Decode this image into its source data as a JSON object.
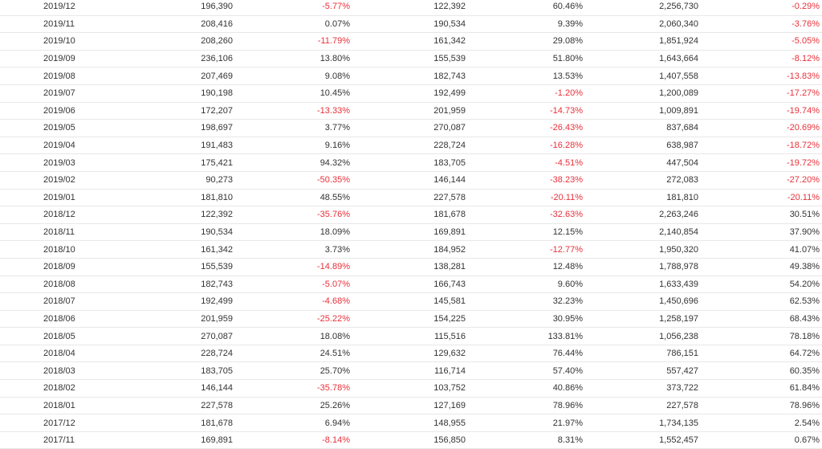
{
  "colors": {
    "negative": "#e8313a",
    "text": "#333333",
    "row_border": "#e8e8e8"
  },
  "table": {
    "rows": [
      [
        "2019/12",
        "196,390",
        "-5.77%",
        "122,392",
        "60.46%",
        "2,256,730",
        "-0.29%"
      ],
      [
        "2019/11",
        "208,416",
        "0.07%",
        "190,534",
        "9.39%",
        "2,060,340",
        "-3.76%"
      ],
      [
        "2019/10",
        "208,260",
        "-11.79%",
        "161,342",
        "29.08%",
        "1,851,924",
        "-5.05%"
      ],
      [
        "2019/09",
        "236,106",
        "13.80%",
        "155,539",
        "51.80%",
        "1,643,664",
        "-8.12%"
      ],
      [
        "2019/08",
        "207,469",
        "9.08%",
        "182,743",
        "13.53%",
        "1,407,558",
        "-13.83%"
      ],
      [
        "2019/07",
        "190,198",
        "10.45%",
        "192,499",
        "-1.20%",
        "1,200,089",
        "-17.27%"
      ],
      [
        "2019/06",
        "172,207",
        "-13.33%",
        "201,959",
        "-14.73%",
        "1,009,891",
        "-19.74%"
      ],
      [
        "2019/05",
        "198,697",
        "3.77%",
        "270,087",
        "-26.43%",
        "837,684",
        "-20.69%"
      ],
      [
        "2019/04",
        "191,483",
        "9.16%",
        "228,724",
        "-16.28%",
        "638,987",
        "-18.72%"
      ],
      [
        "2019/03",
        "175,421",
        "94.32%",
        "183,705",
        "-4.51%",
        "447,504",
        "-19.72%"
      ],
      [
        "2019/02",
        "90,273",
        "-50.35%",
        "146,144",
        "-38.23%",
        "272,083",
        "-27.20%"
      ],
      [
        "2019/01",
        "181,810",
        "48.55%",
        "227,578",
        "-20.11%",
        "181,810",
        "-20.11%"
      ],
      [
        "2018/12",
        "122,392",
        "-35.76%",
        "181,678",
        "-32.63%",
        "2,263,246",
        "30.51%"
      ],
      [
        "2018/11",
        "190,534",
        "18.09%",
        "169,891",
        "12.15%",
        "2,140,854",
        "37.90%"
      ],
      [
        "2018/10",
        "161,342",
        "3.73%",
        "184,952",
        "-12.77%",
        "1,950,320",
        "41.07%"
      ],
      [
        "2018/09",
        "155,539",
        "-14.89%",
        "138,281",
        "12.48%",
        "1,788,978",
        "49.38%"
      ],
      [
        "2018/08",
        "182,743",
        "-5.07%",
        "166,743",
        "9.60%",
        "1,633,439",
        "54.20%"
      ],
      [
        "2018/07",
        "192,499",
        "-4.68%",
        "145,581",
        "32.23%",
        "1,450,696",
        "62.53%"
      ],
      [
        "2018/06",
        "201,959",
        "-25.22%",
        "154,225",
        "30.95%",
        "1,258,197",
        "68.43%"
      ],
      [
        "2018/05",
        "270,087",
        "18.08%",
        "115,516",
        "133.81%",
        "1,056,238",
        "78.18%"
      ],
      [
        "2018/04",
        "228,724",
        "24.51%",
        "129,632",
        "76.44%",
        "786,151",
        "64.72%"
      ],
      [
        "2018/03",
        "183,705",
        "25.70%",
        "116,714",
        "57.40%",
        "557,427",
        "60.35%"
      ],
      [
        "2018/02",
        "146,144",
        "-35.78%",
        "103,752",
        "40.86%",
        "373,722",
        "61.84%"
      ],
      [
        "2018/01",
        "227,578",
        "25.26%",
        "127,169",
        "78.96%",
        "227,578",
        "78.96%"
      ],
      [
        "2017/12",
        "181,678",
        "6.94%",
        "148,955",
        "21.97%",
        "1,734,135",
        "2.54%"
      ],
      [
        "2017/11",
        "169,891",
        "-8.14%",
        "156,850",
        "8.31%",
        "1,552,457",
        "0.67%"
      ]
    ]
  }
}
